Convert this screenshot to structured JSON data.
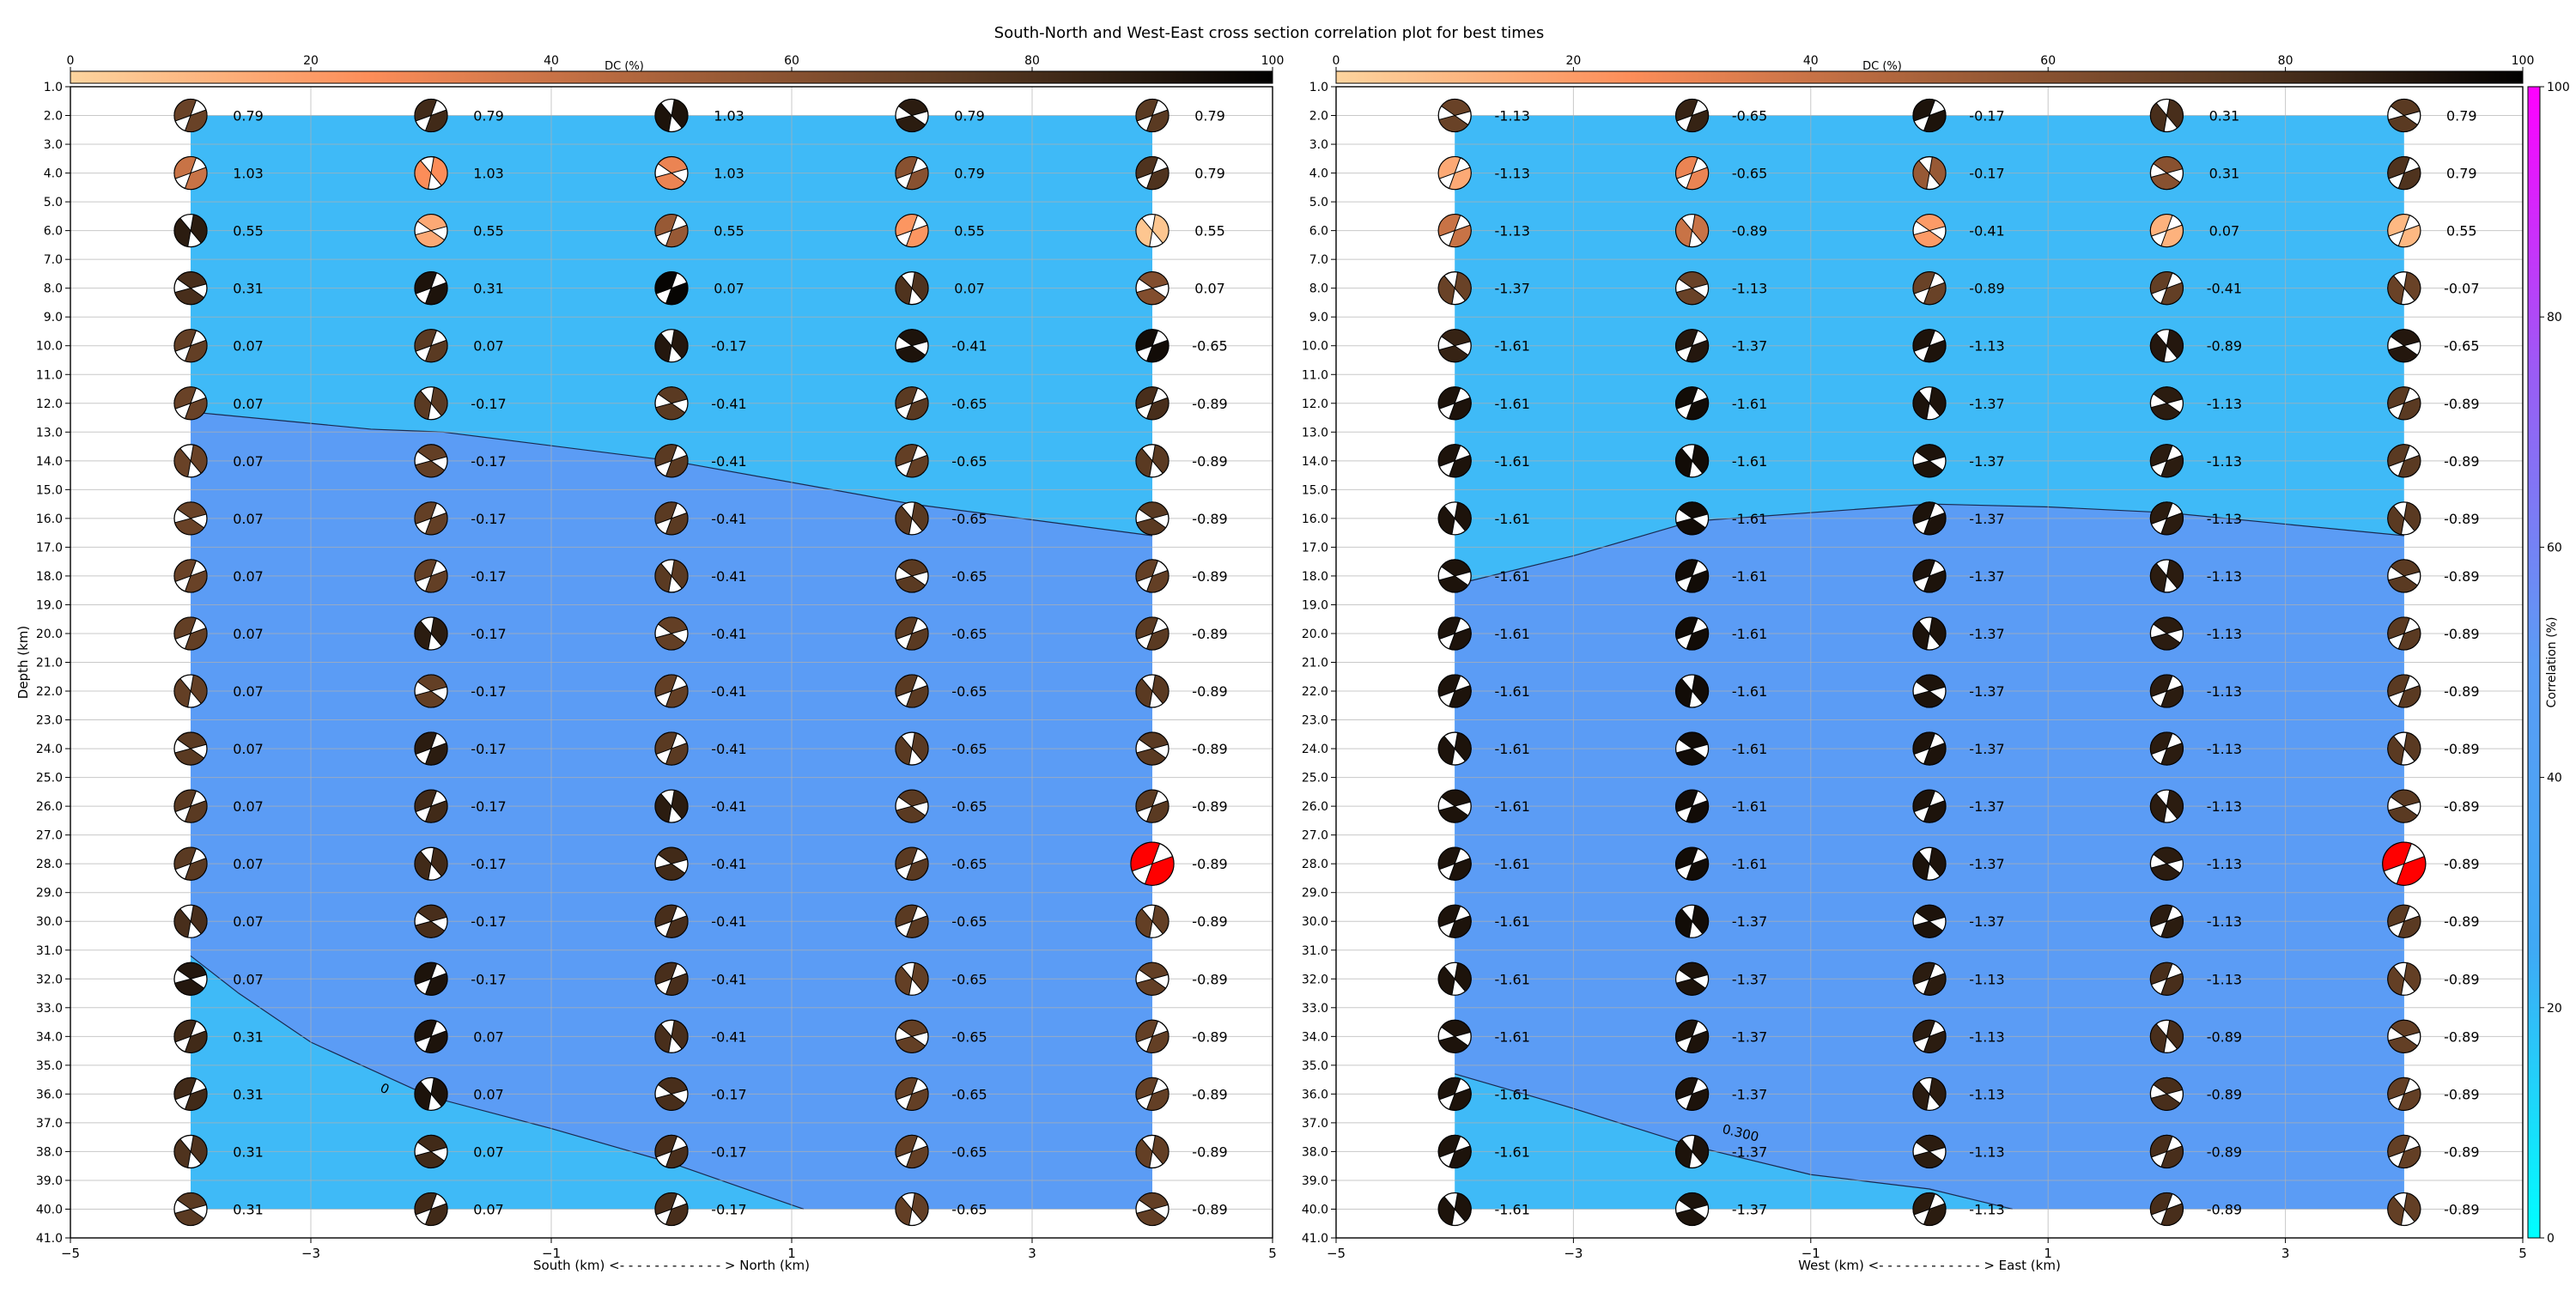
{
  "figure": {
    "title": "South-North and West-East cross section correlation plot for best times"
  },
  "dc_colorbar": {
    "label": "DC (%)",
    "ticks": [
      "0",
      "20",
      "40",
      "60",
      "80",
      "100"
    ],
    "colors": [
      "#fdd49e",
      "#fc8d59",
      "#a6613a",
      "#5a3a22",
      "#000000"
    ]
  },
  "correlation_colorbar": {
    "label": "Correlation (%)",
    "ticks": [
      "0",
      "20",
      "40",
      "60",
      "80",
      "100"
    ],
    "colors": [
      "#00ffff",
      "#3fa9f5",
      "#5b9cf5",
      "#9a5cf5",
      "#ff00ff"
    ]
  },
  "chart_data": [
    {
      "type": "heatmap",
      "panel": "south-north",
      "xlabel": "South (km) <- - - - - - - - - - - - > North (km)",
      "ylabel": "Depth (km)",
      "xlim": [
        -5,
        5
      ],
      "ylim": [
        1,
        41
      ],
      "xticks": [
        -5,
        -3,
        -1,
        1,
        3,
        5
      ],
      "yticks": [
        1,
        2,
        3,
        4,
        5,
        6,
        7,
        8,
        9,
        10,
        11,
        12,
        13,
        14,
        15,
        16,
        17,
        18,
        19,
        20,
        21,
        22,
        23,
        24,
        25,
        26,
        27,
        28,
        29,
        30,
        31,
        32,
        33,
        34,
        35,
        36,
        37,
        38,
        39,
        40,
        41
      ],
      "x": [
        -4,
        -2,
        0,
        2,
        4
      ],
      "depths": [
        2,
        4,
        6,
        8,
        10,
        12,
        14,
        16,
        18,
        20,
        22,
        24,
        26,
        28,
        30,
        32,
        34,
        36,
        38,
        40
      ],
      "time_labels": [
        [
          "0.79",
          "0.79",
          "1.03",
          "0.79",
          "0.79"
        ],
        [
          "1.03",
          "1.03",
          "1.03",
          "0.79",
          "0.79"
        ],
        [
          "0.55",
          "0.55",
          "0.55",
          "0.55",
          "0.55"
        ],
        [
          "0.31",
          "0.31",
          "0.07",
          "0.07",
          "0.07"
        ],
        [
          "0.07",
          "0.07",
          "-0.17",
          "-0.41",
          "-0.65"
        ],
        [
          "0.07",
          "-0.17",
          "-0.41",
          "-0.65",
          "-0.89"
        ],
        [
          "0.07",
          "-0.17",
          "-0.41",
          "-0.65",
          "-0.89"
        ],
        [
          "0.07",
          "-0.17",
          "-0.41",
          "-0.65",
          "-0.89"
        ],
        [
          "0.07",
          "-0.17",
          "-0.41",
          "-0.65",
          "-0.89"
        ],
        [
          "0.07",
          "-0.17",
          "-0.41",
          "-0.65",
          "-0.89"
        ],
        [
          "0.07",
          "-0.17",
          "-0.41",
          "-0.65",
          "-0.89"
        ],
        [
          "0.07",
          "-0.17",
          "-0.41",
          "-0.65",
          "-0.89"
        ],
        [
          "0.07",
          "-0.17",
          "-0.41",
          "-0.65",
          "-0.89"
        ],
        [
          "0.07",
          "-0.17",
          "-0.41",
          "-0.65",
          "-0.89"
        ],
        [
          "0.07",
          "-0.17",
          "-0.41",
          "-0.65",
          "-0.89"
        ],
        [
          "0.07",
          "-0.17",
          "-0.41",
          "-0.65",
          "-0.89"
        ],
        [
          "0.31",
          "0.07",
          "-0.41",
          "-0.65",
          "-0.89"
        ],
        [
          "0.31",
          "0.07",
          "-0.17",
          "-0.65",
          "-0.89"
        ],
        [
          "0.31",
          "0.07",
          "-0.17",
          "-0.65",
          "-0.89"
        ],
        [
          "0.31",
          "0.07",
          "-0.17",
          "-0.65",
          "-0.89"
        ]
      ],
      "dc": [
        [
          70,
          82,
          92,
          88,
          75
        ],
        [
          40,
          25,
          30,
          60,
          78
        ],
        [
          88,
          15,
          55,
          22,
          5
        ],
        [
          80,
          92,
          98,
          78,
          62
        ],
        [
          72,
          75,
          90,
          92,
          95
        ],
        [
          70,
          75,
          75,
          75,
          80
        ],
        [
          70,
          72,
          75,
          72,
          75
        ],
        [
          70,
          72,
          75,
          75,
          75
        ],
        [
          70,
          72,
          75,
          75,
          72
        ],
        [
          72,
          88,
          72,
          75,
          75
        ],
        [
          72,
          72,
          72,
          75,
          75
        ],
        [
          75,
          88,
          75,
          75,
          75
        ],
        [
          75,
          82,
          88,
          75,
          75
        ],
        [
          75,
          82,
          82,
          75,
          75
        ],
        [
          80,
          80,
          80,
          75,
          72
        ],
        [
          90,
          92,
          80,
          72,
          72
        ],
        [
          82,
          92,
          80,
          72,
          72
        ],
        [
          82,
          92,
          80,
          72,
          72
        ],
        [
          78,
          82,
          80,
          72,
          72
        ],
        [
          75,
          82,
          80,
          72,
          72
        ]
      ],
      "best_mechanism": {
        "x": 4,
        "depth": 28
      },
      "contours": [
        {
          "label": "",
          "points": [
            [
              -4,
              12.3
            ],
            [
              -2.5,
              12.9
            ],
            [
              -1.9,
              13.0
            ],
            [
              0,
              14.0
            ],
            [
              2,
              15.5
            ],
            [
              4,
              16.6
            ]
          ]
        },
        {
          "label": "0",
          "points": [
            [
              -4,
              31.2
            ],
            [
              -3.6,
              32.5
            ],
            [
              -3,
              34.2
            ],
            [
              -2,
              36.1
            ],
            [
              -1,
              37.2
            ],
            [
              0,
              38.4
            ],
            [
              1.1,
              40.0
            ]
          ]
        }
      ]
    },
    {
      "type": "heatmap",
      "panel": "west-east",
      "xlabel": "West (km) <- - - - - - - - - - - - > East (km)",
      "ylabel": "",
      "xlim": [
        -5,
        5
      ],
      "ylim": [
        1,
        41
      ],
      "xticks": [
        -5,
        -3,
        -1,
        1,
        3,
        5
      ],
      "yticks": [
        1,
        2,
        3,
        4,
        5,
        6,
        7,
        8,
        9,
        10,
        11,
        12,
        13,
        14,
        15,
        16,
        17,
        18,
        19,
        20,
        21,
        22,
        23,
        24,
        25,
        26,
        27,
        28,
        29,
        30,
        31,
        32,
        33,
        34,
        35,
        36,
        37,
        38,
        39,
        40,
        41
      ],
      "x": [
        -4,
        -2,
        0,
        2,
        4
      ],
      "depths": [
        2,
        4,
        6,
        8,
        10,
        12,
        14,
        16,
        18,
        20,
        22,
        24,
        26,
        28,
        30,
        32,
        34,
        36,
        38,
        40
      ],
      "time_labels": [
        [
          "-1.13",
          "-0.65",
          "-0.17",
          "0.31",
          "0.79"
        ],
        [
          "-1.13",
          "-0.65",
          "-0.17",
          "0.31",
          "0.79"
        ],
        [
          "-1.13",
          "-0.89",
          "-0.41",
          "0.07",
          "0.55"
        ],
        [
          "-1.37",
          "-1.13",
          "-0.89",
          "-0.41",
          "-0.07"
        ],
        [
          "-1.61",
          "-1.37",
          "-1.13",
          "-0.89",
          "-0.65"
        ],
        [
          "-1.61",
          "-1.61",
          "-1.37",
          "-1.13",
          "-0.89"
        ],
        [
          "-1.61",
          "-1.61",
          "-1.37",
          "-1.13",
          "-0.89"
        ],
        [
          "-1.61",
          "-1.61",
          "-1.37",
          "-1.13",
          "-0.89"
        ],
        [
          "-1.61",
          "-1.61",
          "-1.37",
          "-1.13",
          "-0.89"
        ],
        [
          "-1.61",
          "-1.61",
          "-1.37",
          "-1.13",
          "-0.89"
        ],
        [
          "-1.61",
          "-1.61",
          "-1.37",
          "-1.13",
          "-0.89"
        ],
        [
          "-1.61",
          "-1.61",
          "-1.37",
          "-1.13",
          "-0.89"
        ],
        [
          "-1.61",
          "-1.61",
          "-1.37",
          "-1.13",
          "-0.89"
        ],
        [
          "-1.61",
          "-1.61",
          "-1.37",
          "-1.13",
          "-0.89"
        ],
        [
          "-1.61",
          "-1.37",
          "-1.37",
          "-1.13",
          "-0.89"
        ],
        [
          "-1.61",
          "-1.37",
          "-1.13",
          "-1.13",
          "-0.89"
        ],
        [
          "-1.61",
          "-1.37",
          "-1.13",
          "-0.89",
          "-0.89"
        ],
        [
          "-1.61",
          "-1.37",
          "-1.13",
          "-0.89",
          "-0.89"
        ],
        [
          "-1.61",
          "-1.37",
          "-1.13",
          "-0.89",
          "-0.89"
        ],
        [
          "-1.61",
          "-1.37",
          "-1.13",
          "-0.89",
          "-0.89"
        ]
      ],
      "dc": [
        [
          70,
          85,
          92,
          80,
          75
        ],
        [
          15,
          30,
          55,
          60,
          78
        ],
        [
          40,
          40,
          20,
          12,
          10
        ],
        [
          70,
          70,
          70,
          72,
          70
        ],
        [
          85,
          90,
          92,
          90,
          90
        ],
        [
          92,
          95,
          92,
          88,
          75
        ],
        [
          92,
          95,
          92,
          88,
          75
        ],
        [
          92,
          95,
          92,
          88,
          75
        ],
        [
          92,
          95,
          92,
          88,
          75
        ],
        [
          92,
          95,
          92,
          88,
          75
        ],
        [
          92,
          95,
          92,
          88,
          75
        ],
        [
          92,
          95,
          92,
          88,
          75
        ],
        [
          92,
          95,
          92,
          88,
          75
        ],
        [
          92,
          95,
          92,
          88,
          75
        ],
        [
          92,
          95,
          92,
          88,
          75
        ],
        [
          92,
          92,
          88,
          80,
          72
        ],
        [
          92,
          92,
          88,
          80,
          72
        ],
        [
          92,
          92,
          88,
          80,
          72
        ],
        [
          92,
          92,
          88,
          80,
          72
        ],
        [
          92,
          92,
          88,
          80,
          72
        ]
      ],
      "best_mechanism": {
        "x": 4,
        "depth": 28
      },
      "contours": [
        {
          "label": "",
          "points": [
            [
              -4,
              18.3
            ],
            [
              -3,
              17.3
            ],
            [
              -2,
              16.1
            ],
            [
              0,
              15.5
            ],
            [
              1,
              15.6
            ],
            [
              2,
              15.8
            ],
            [
              4,
              16.6
            ]
          ]
        },
        {
          "label": "0.300",
          "points": [
            [
              -4,
              35.3
            ],
            [
              -3,
              36.5
            ],
            [
              -2,
              37.8
            ],
            [
              -1,
              38.8
            ],
            [
              0,
              39.3
            ],
            [
              0.7,
              40.0
            ]
          ]
        }
      ]
    }
  ]
}
